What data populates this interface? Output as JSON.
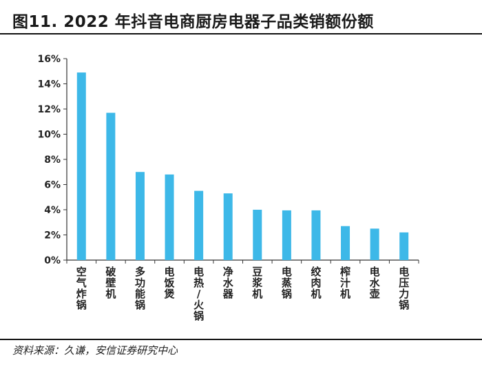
{
  "figure": {
    "title": "图11. 2022 年抖音电商厨房电器子品类销额份额",
    "source": "资料来源：久谦，安信证券研究中心"
  },
  "chart_data": {
    "type": "bar",
    "categories": [
      "空气炸锅",
      "破壁机",
      "多功能锅",
      "电饭煲",
      "电热/火锅",
      "净水器",
      "豆浆机",
      "电蒸锅",
      "绞肉机",
      "榨汁机",
      "电水壶",
      "电压力锅"
    ],
    "values": [
      14.9,
      11.7,
      7.0,
      6.8,
      5.5,
      5.3,
      4.0,
      3.95,
      3.95,
      2.7,
      2.5,
      2.2
    ],
    "yticks": [
      "0%",
      "2%",
      "4%",
      "6%",
      "8%",
      "10%",
      "12%",
      "14%",
      "16%"
    ],
    "ylim": [
      0,
      16
    ],
    "grid": false,
    "bar_color": "#3DB8E8",
    "xlabel": "",
    "ylabel": ""
  }
}
